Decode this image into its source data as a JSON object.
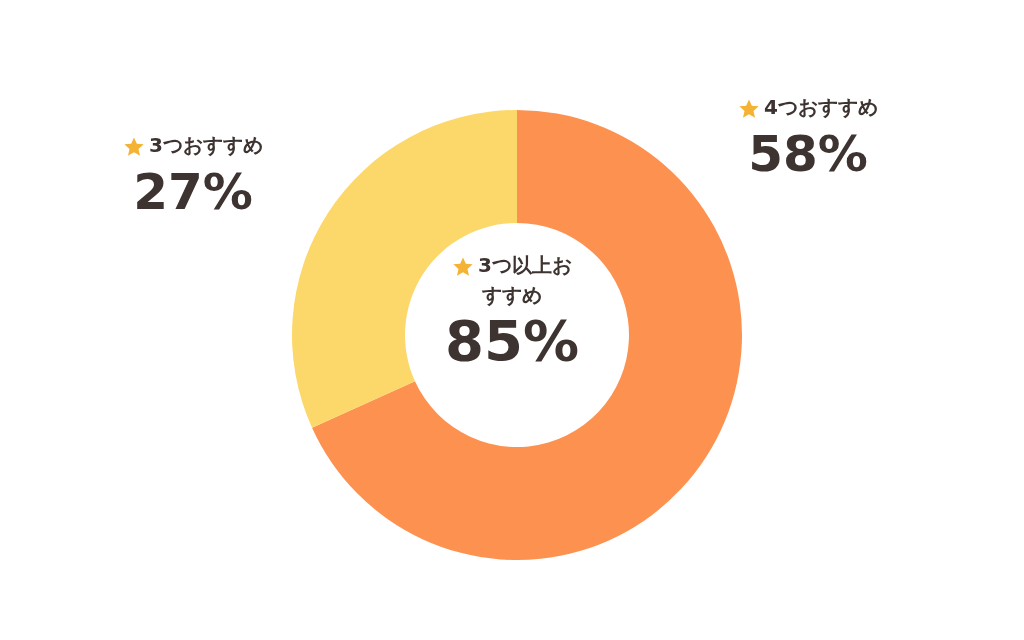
{
  "chart_data": {
    "type": "donut",
    "categories": [
      "4つおすすめ",
      "3つおすすめ"
    ],
    "values": [
      58,
      27
    ],
    "colors": [
      "#fd9150",
      "#fcd86a"
    ],
    "value_labels": [
      "58%",
      "27%"
    ],
    "annotations": [
      "3つ以上おすすめ",
      "85%"
    ]
  }
}
